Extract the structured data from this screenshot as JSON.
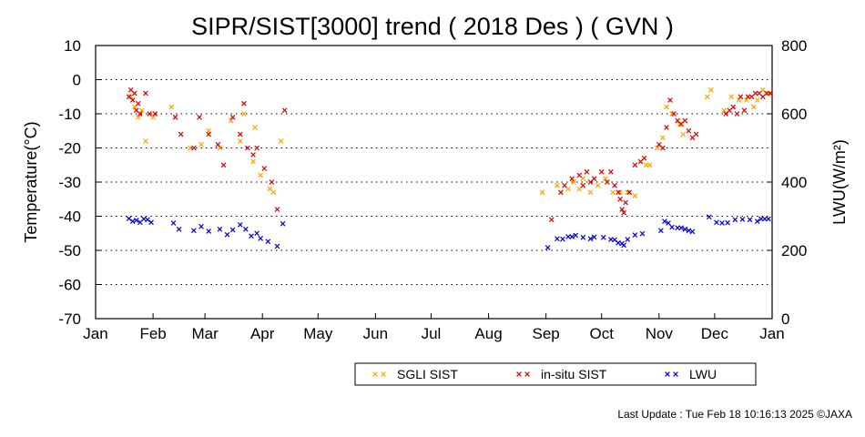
{
  "footer": {
    "last_update": "Last Update : Tue Feb 18 10:16:13 2025  ©JAXA"
  },
  "chart_data": {
    "type": "scatter",
    "title": "SIPR/SIST[3000] trend ( 2018 Des ) ( GVN )",
    "xlabel": "",
    "ylabel": "Temperature(°C)",
    "y2label": "LWU(W/m²)",
    "x_unit": "day of year 2018",
    "x_ticks": [
      {
        "label": "Jan",
        "day": 1
      },
      {
        "label": "Feb",
        "day": 32
      },
      {
        "label": "Mar",
        "day": 60
      },
      {
        "label": "Apr",
        "day": 91
      },
      {
        "label": "May",
        "day": 121
      },
      {
        "label": "Jun",
        "day": 152
      },
      {
        "label": "Jul",
        "day": 182
      },
      {
        "label": "Aug",
        "day": 213
      },
      {
        "label": "Sep",
        "day": 244
      },
      {
        "label": "Oct",
        "day": 274
      },
      {
        "label": "Nov",
        "day": 305
      },
      {
        "label": "Dec",
        "day": 335
      },
      {
        "label": "Jan",
        "day": 366
      }
    ],
    "xlim": [
      1,
      366
    ],
    "ylim": [
      -70,
      10
    ],
    "y_ticks": [
      10,
      0,
      -10,
      -20,
      -30,
      -40,
      -50,
      -60,
      -70
    ],
    "y2lim": [
      0,
      800
    ],
    "y2_ticks": [
      800,
      600,
      400,
      200,
      0
    ],
    "grid": "horizontal-dotted",
    "legend_position": "bottom-center",
    "series": [
      {
        "name": "SGLI SIST",
        "color": "#ffa500",
        "axis": "left",
        "points": [
          [
            20,
            -5
          ],
          [
            22,
            -8
          ],
          [
            24,
            -11
          ],
          [
            26,
            -9
          ],
          [
            28,
            -18
          ],
          [
            32,
            -11
          ],
          [
            42,
            -8
          ],
          [
            44,
            -11
          ],
          [
            52,
            -20
          ],
          [
            58,
            -19
          ],
          [
            62,
            -15
          ],
          [
            68,
            -20
          ],
          [
            74,
            -12
          ],
          [
            79,
            -18
          ],
          [
            81,
            -10
          ],
          [
            86,
            -24
          ],
          [
            87,
            -14
          ],
          [
            90,
            -28
          ],
          [
            95,
            -32
          ],
          [
            97,
            -33
          ],
          [
            101,
            -18
          ],
          [
            242,
            -33
          ],
          [
            250,
            -31
          ],
          [
            252,
            -33
          ],
          [
            256,
            -32
          ],
          [
            259,
            -30
          ],
          [
            262,
            -32
          ],
          [
            264,
            -29
          ],
          [
            268,
            -33
          ],
          [
            272,
            -31
          ],
          [
            276,
            -29
          ],
          [
            280,
            -33
          ],
          [
            284,
            -33
          ],
          [
            288,
            -33
          ],
          [
            292,
            -34
          ],
          [
            298,
            -25
          ],
          [
            300,
            -25
          ],
          [
            304,
            -20
          ],
          [
            307,
            -17
          ],
          [
            309,
            -8
          ],
          [
            312,
            -10
          ],
          [
            316,
            -13
          ],
          [
            318,
            -16
          ],
          [
            331,
            -5
          ],
          [
            333,
            -3
          ],
          [
            340,
            -9
          ],
          [
            344,
            -5
          ],
          [
            348,
            -6
          ],
          [
            352,
            -6
          ],
          [
            356,
            -8
          ],
          [
            358,
            -6
          ],
          [
            361,
            -3
          ],
          [
            364,
            -4
          ]
        ]
      },
      {
        "name": "in-situ SIST",
        "color": "#e00000",
        "axis": "left",
        "points": [
          [
            19,
            -5
          ],
          [
            20,
            -3
          ],
          [
            21,
            -6
          ],
          [
            22,
            -4
          ],
          [
            23,
            -9
          ],
          [
            24,
            -7
          ],
          [
            25,
            -10
          ],
          [
            28,
            -4
          ],
          [
            30,
            -10
          ],
          [
            33,
            -10
          ],
          [
            44,
            -11
          ],
          [
            47,
            -16
          ],
          [
            54,
            -20
          ],
          [
            57,
            -11
          ],
          [
            62,
            -16
          ],
          [
            67,
            -19
          ],
          [
            70,
            -25
          ],
          [
            75,
            -11
          ],
          [
            79,
            -16
          ],
          [
            81,
            -7
          ],
          [
            83,
            -20
          ],
          [
            86,
            -22
          ],
          [
            88,
            -20
          ],
          [
            92,
            -26
          ],
          [
            96,
            -30
          ],
          [
            99,
            -38
          ],
          [
            103,
            -9
          ],
          [
            247,
            -41
          ],
          [
            252,
            -33
          ],
          [
            254,
            -31
          ],
          [
            258,
            -29
          ],
          [
            262,
            -28
          ],
          [
            264,
            -31
          ],
          [
            266,
            -27
          ],
          [
            268,
            -30
          ],
          [
            270,
            -29
          ],
          [
            274,
            -27
          ],
          [
            277,
            -30
          ],
          [
            279,
            -27
          ],
          [
            281,
            -31
          ],
          [
            283,
            -33
          ],
          [
            284,
            -35
          ],
          [
            285,
            -38
          ],
          [
            286,
            -39
          ],
          [
            287,
            -36
          ],
          [
            289,
            -33
          ],
          [
            292,
            -25
          ],
          [
            295,
            -24
          ],
          [
            297,
            -23
          ],
          [
            305,
            -19
          ],
          [
            307,
            -20
          ],
          [
            309,
            -14
          ],
          [
            311,
            -6
          ],
          [
            313,
            -10
          ],
          [
            315,
            -12
          ],
          [
            317,
            -13
          ],
          [
            319,
            -12
          ],
          [
            321,
            -15
          ],
          [
            323,
            -17
          ],
          [
            325,
            -16
          ],
          [
            341,
            -10
          ],
          [
            343,
            -9
          ],
          [
            345,
            -8
          ],
          [
            347,
            -10
          ],
          [
            349,
            -5
          ],
          [
            351,
            -9
          ],
          [
            353,
            -5
          ],
          [
            355,
            -5
          ],
          [
            357,
            -4
          ],
          [
            359,
            -4
          ],
          [
            361,
            -5
          ],
          [
            363,
            -4
          ],
          [
            365,
            -4
          ]
        ]
      },
      {
        "name": "LWU",
        "color": "#0000dd",
        "axis": "right",
        "points": [
          [
            19,
            293
          ],
          [
            21,
            285
          ],
          [
            23,
            288
          ],
          [
            25,
            282
          ],
          [
            27,
            292
          ],
          [
            29,
            290
          ],
          [
            31,
            282
          ],
          [
            43,
            280
          ],
          [
            46,
            262
          ],
          [
            54,
            258
          ],
          [
            58,
            270
          ],
          [
            62,
            256
          ],
          [
            68,
            262
          ],
          [
            72,
            246
          ],
          [
            75,
            260
          ],
          [
            79,
            275
          ],
          [
            82,
            262
          ],
          [
            85,
            242
          ],
          [
            88,
            250
          ],
          [
            90,
            235
          ],
          [
            94,
            226
          ],
          [
            99,
            212
          ],
          [
            102,
            278
          ],
          [
            245,
            208
          ],
          [
            250,
            234
          ],
          [
            253,
            233
          ],
          [
            256,
            240
          ],
          [
            258,
            240
          ],
          [
            260,
            244
          ],
          [
            264,
            238
          ],
          [
            268,
            234
          ],
          [
            270,
            239
          ],
          [
            275,
            238
          ],
          [
            279,
            232
          ],
          [
            281,
            231
          ],
          [
            283,
            222
          ],
          [
            285,
            220
          ],
          [
            286,
            215
          ],
          [
            288,
            232
          ],
          [
            292,
            245
          ],
          [
            296,
            249
          ],
          [
            306,
            258
          ],
          [
            308,
            285
          ],
          [
            310,
            280
          ],
          [
            312,
            268
          ],
          [
            315,
            266
          ],
          [
            317,
            266
          ],
          [
            319,
            262
          ],
          [
            321,
            258
          ],
          [
            323,
            255
          ],
          [
            332,
            298
          ],
          [
            336,
            282
          ],
          [
            339,
            280
          ],
          [
            342,
            281
          ],
          [
            346,
            290
          ],
          [
            350,
            291
          ],
          [
            354,
            290
          ],
          [
            358,
            285
          ],
          [
            360,
            292
          ],
          [
            362,
            292
          ],
          [
            364,
            292
          ]
        ]
      }
    ]
  }
}
